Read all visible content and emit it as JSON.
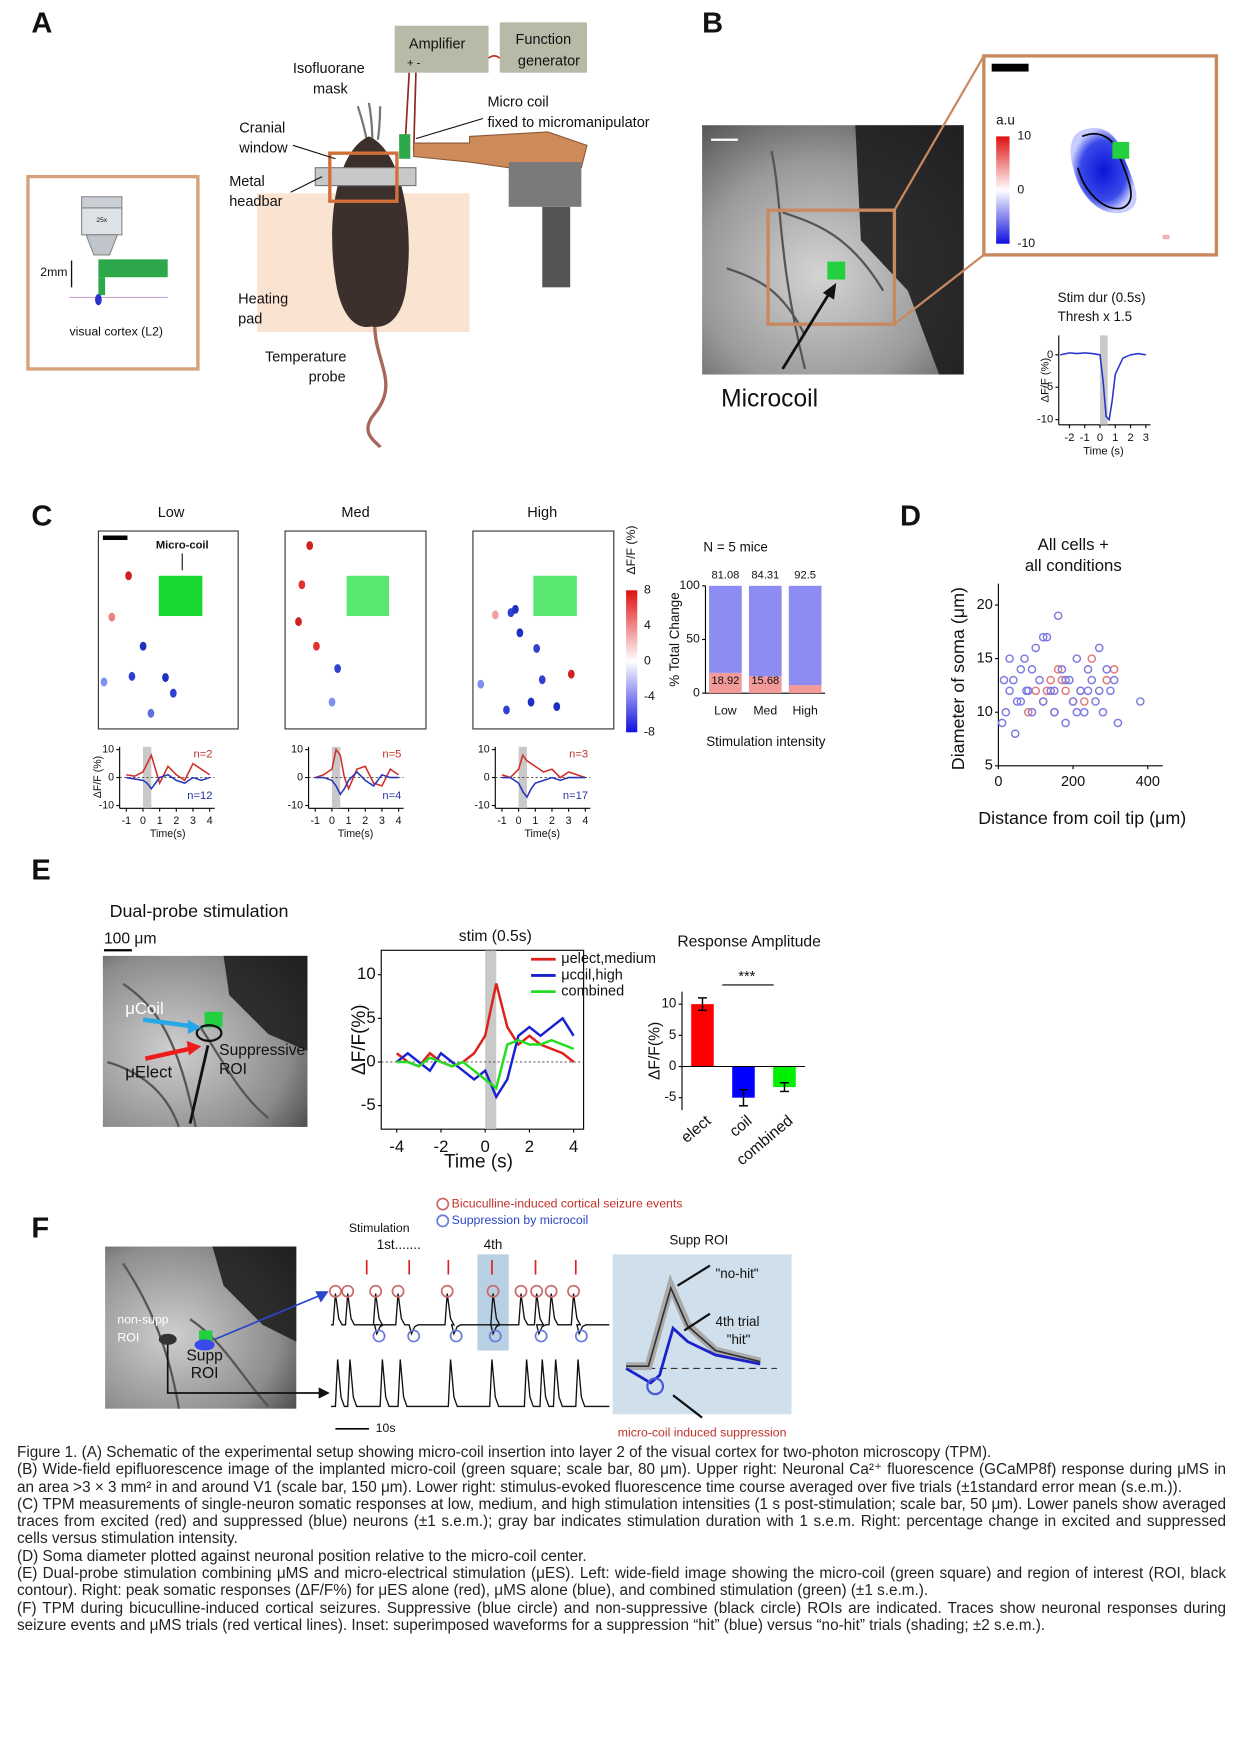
{
  "figure": {
    "A": {
      "label": "A",
      "objective": "25x",
      "depth": "2mm",
      "region": "visual cortex (L2)",
      "amplifier": "Amplifier",
      "polarity": "+ -",
      "function_generator": [
        "Function",
        "generator"
      ],
      "mask": [
        "Isofluorane",
        "mask"
      ],
      "coil": [
        "Micro coil",
        "fixed to micromanipulator"
      ],
      "window": [
        "Cranial",
        "window"
      ],
      "headbar": [
        "Metal",
        "headbar"
      ],
      "pad": [
        "Heating",
        "pad"
      ],
      "probe": [
        "Temperature",
        "probe"
      ]
    },
    "B": {
      "label": "B",
      "image_label": "Microcoil",
      "colorbar_label": "a.u",
      "colorbar_ticks": [
        10,
        0,
        -10
      ]
    },
    "C": {
      "label": "C",
      "coil_label": "Micro-coil",
      "colorbar_label": "ΔF/F (%)",
      "colorbar_ticks": [
        8,
        4,
        0,
        -4,
        -8
      ]
    },
    "D": {
      "label": "D"
    },
    "E": {
      "label": "E",
      "title": "Dual-probe stimulation",
      "scale": "100 μm",
      "coil": "μCoil",
      "elect": "μElect",
      "roi": [
        "Suppressive",
        "ROI"
      ]
    },
    "F": {
      "label": "F",
      "nonsupp": [
        "non-supp",
        "ROI"
      ],
      "supp": [
        "Supp",
        "ROI"
      ],
      "legend": [
        "Bicuculline-induced cortical seizure events",
        "Suppression by microcoil"
      ],
      "stimulation": "Stimulation",
      "first": "1st.......",
      "fourth": "4th",
      "scale": "10s",
      "inset_title": "Supp ROI",
      "no_hit": "\"no-hit\"",
      "hit": [
        "4th trial",
        "\"hit\""
      ],
      "suppression": "micro-coil induced suppression"
    }
  },
  "chart_data": [
    {
      "type": "line",
      "title": [
        "Stim dur (0.5s)",
        "Thresh x 1.5"
      ],
      "xlabel": "Time (s)",
      "ylabel": "ΔF/F (%)",
      "x": [
        -2.6,
        -2,
        -1.5,
        -1,
        -0.5,
        0,
        0.2,
        0.4,
        0.6,
        0.8,
        1,
        1.5,
        2,
        2.5,
        3
      ],
      "series": [
        {
          "color": "#2a35c8",
          "values": [
            0,
            0.3,
            0.2,
            0.3,
            0.2,
            0,
            -4,
            -9.5,
            -10,
            -7,
            -3,
            -0.5,
            0,
            0.2,
            0
          ]
        }
      ],
      "shaded_span": [
        0,
        0.5
      ],
      "xlim": [
        -2.7,
        3.3
      ],
      "ylim": [
        -10.8,
        3
      ],
      "xticks": [
        -2,
        -1,
        0,
        1,
        2,
        3
      ],
      "yticks": [
        -10,
        -5,
        0
      ]
    },
    {
      "type": "line",
      "title": "Low",
      "xlabel": "Time(s)",
      "ylabel": "ΔF/F (%)",
      "x": [
        -1,
        -0.5,
        0,
        0.25,
        0.5,
        0.75,
        1,
        1.5,
        2,
        2.5,
        3,
        3.5,
        4
      ],
      "series": [
        {
          "color": "#d0302a",
          "values": [
            1,
            0.5,
            2,
            5,
            8,
            3,
            -2,
            4,
            1,
            -1,
            5,
            3,
            1
          ]
        },
        {
          "color": "#2a35b8",
          "values": [
            0,
            -0.5,
            -1,
            -2,
            -4,
            -2,
            0,
            1,
            -1,
            -2,
            0,
            -1,
            0
          ]
        }
      ],
      "annotations": [
        {
          "text": "n=2",
          "color": "#c0302a"
        },
        {
          "text": "n=12",
          "color": "#2a35a8"
        }
      ],
      "shaded_span": [
        0,
        0.5
      ],
      "xlim": [
        -1.4,
        4.3
      ],
      "ylim": [
        -11,
        11
      ],
      "xticks": [
        -1,
        0,
        1,
        2,
        3,
        4
      ],
      "yticks": [
        -10,
        0,
        10
      ]
    },
    {
      "type": "line",
      "title": "Med",
      "xlabel": "Time(s)",
      "x": [
        -1,
        -0.5,
        0,
        0.25,
        0.5,
        0.75,
        1,
        1.5,
        2,
        2.5,
        3,
        3.5,
        4
      ],
      "series": [
        {
          "color": "#d0302a",
          "values": [
            0,
            1,
            3,
            10,
            8,
            0,
            -4,
            3,
            4,
            -2,
            -3,
            3,
            1
          ]
        },
        {
          "color": "#2a35b8",
          "values": [
            0,
            0,
            -1,
            -3,
            -6,
            -4,
            -1,
            2,
            -1,
            -3,
            1,
            0,
            0
          ]
        }
      ],
      "annotations": [
        {
          "text": "n=5",
          "color": "#c0302a"
        },
        {
          "text": "n=4",
          "color": "#2a35a8"
        }
      ],
      "shaded_span": [
        0,
        0.5
      ],
      "xlim": [
        -1.4,
        4.3
      ],
      "ylim": [
        -11,
        11
      ],
      "xticks": [
        -1,
        0,
        1,
        2,
        3,
        4
      ],
      "yticks": [
        -10,
        0,
        10
      ]
    },
    {
      "type": "line",
      "title": "High",
      "xlabel": "Time(s)",
      "x": [
        -1,
        -0.5,
        0,
        0.25,
        0.5,
        0.75,
        1,
        1.5,
        2,
        2.5,
        3,
        3.5,
        4
      ],
      "series": [
        {
          "color": "#d0302a",
          "values": [
            1,
            0,
            3,
            8,
            6,
            5,
            4,
            2,
            3,
            0,
            2,
            1,
            0
          ]
        },
        {
          "color": "#2a35b8",
          "values": [
            0,
            0,
            -2,
            -5,
            -7,
            -4,
            -2,
            -1,
            0,
            -1,
            0,
            0,
            0
          ]
        }
      ],
      "annotations": [
        {
          "text": "n=3",
          "color": "#c0302a"
        },
        {
          "text": "n=17",
          "color": "#2a35a8"
        }
      ],
      "shaded_span": [
        0,
        0.5
      ],
      "xlim": [
        -1.4,
        4.3
      ],
      "ylim": [
        -11,
        11
      ],
      "xticks": [
        -1,
        0,
        1,
        2,
        3,
        4
      ],
      "yticks": [
        -10,
        0,
        10
      ]
    },
    {
      "type": "bar",
      "stacked": true,
      "title": "N = 5 mice",
      "xlabel": "Stimulation intensity",
      "ylabel": "% Total Change",
      "categories": [
        "Low",
        "Med",
        "High"
      ],
      "series": [
        {
          "color": "#f29a9a",
          "values": [
            18.92,
            15.68,
            7.5
          ]
        },
        {
          "color": "#8c8cf2",
          "values": [
            81.08,
            84.31,
            92.5
          ]
        }
      ],
      "ylim": [
        0,
        100
      ],
      "yticks": [
        0,
        50,
        100
      ]
    },
    {
      "type": "scatter",
      "title": [
        "All cells +",
        "all conditions"
      ],
      "xlabel": "Distance from coil tip (μm)",
      "ylabel": "Diameter of soma (μm)",
      "series": [
        {
          "color": "#e07878",
          "x": [
            100,
            120,
            140,
            160,
            180,
            200,
            220,
            250,
            290,
            310,
            80,
            150,
            170,
            230,
            130
          ],
          "values": [
            12,
            11,
            13,
            14,
            12,
            11,
            12,
            15,
            13,
            14,
            10,
            10,
            13,
            11,
            12
          ]
        },
        {
          "color": "#7a7ae0",
          "x": [
            10,
            20,
            30,
            40,
            50,
            60,
            70,
            80,
            90,
            100,
            110,
            120,
            130,
            140,
            150,
            160,
            170,
            180,
            190,
            200,
            210,
            220,
            230,
            240,
            250,
            260,
            270,
            280,
            290,
            300,
            310,
            320,
            30,
            60,
            90,
            120,
            150,
            180,
            210,
            240,
            270,
            15,
            45,
            75,
            380
          ],
          "values": [
            9,
            10,
            12,
            13,
            11,
            14,
            15,
            12,
            10,
            16,
            13,
            11,
            17,
            12,
            10,
            19,
            14,
            9,
            13,
            11,
            15,
            12,
            10,
            14,
            13,
            11,
            12,
            10,
            14,
            12,
            13,
            9,
            15,
            11,
            14,
            17,
            12,
            13,
            10,
            12,
            16,
            13,
            8,
            12,
            11
          ]
        }
      ],
      "xlim": [
        0,
        440
      ],
      "ylim": [
        5,
        22
      ],
      "xticks": [
        0,
        200,
        400
      ],
      "yticks": [
        5,
        10,
        15,
        20
      ]
    },
    {
      "type": "line",
      "title": "stim (0.5s)",
      "xlabel": "Time (s)",
      "ylabel": "ΔF/F(%)",
      "x": [
        -4,
        -3.5,
        -3,
        -2.5,
        -2,
        -1.5,
        -1,
        -0.5,
        0,
        0.5,
        1,
        1.5,
        2,
        2.5,
        3,
        3.5,
        4
      ],
      "series": [
        {
          "name": "μelect,medium",
          "color": "#e0201a",
          "values": [
            1,
            0,
            -0.5,
            1,
            0,
            -0.5,
            0,
            1,
            3,
            9,
            4,
            2,
            3,
            2,
            1.5,
            1,
            0
          ]
        },
        {
          "name": "μcoil,high",
          "color": "#1a22d0",
          "values": [
            0,
            1,
            0,
            -1,
            1,
            0,
            -1,
            -2,
            -1,
            -4,
            -2,
            3,
            4,
            3,
            4,
            5,
            3
          ]
        },
        {
          "name": "combined",
          "color": "#22dd22",
          "values": [
            0,
            0,
            -0.5,
            0.5,
            0,
            -0.5,
            0,
            -1,
            -2,
            -3,
            2,
            2.5,
            2,
            2,
            2.5,
            2,
            1.5
          ]
        }
      ],
      "shaded_span": [
        0,
        0.5
      ],
      "xlim": [
        -4.7,
        4.45
      ],
      "ylim": [
        -7.7,
        12.8
      ],
      "xticks": [
        -4,
        -2,
        0,
        2,
        4
      ],
      "yticks": [
        -5,
        0,
        5,
        10
      ]
    },
    {
      "type": "bar",
      "title": "Response Amplitude",
      "ylabel": "ΔF/F(%)",
      "categories": [
        "elect",
        "coil",
        "combined"
      ],
      "values": [
        10,
        -5,
        -3.3
      ],
      "errors": [
        1,
        1.3,
        0.7
      ],
      "colors": [
        "#ff0000",
        "#0000ff",
        "#00ee00"
      ],
      "annotations": [
        "***"
      ],
      "ylim": [
        -7,
        12
      ],
      "yticks": [
        -5,
        0,
        5,
        10
      ]
    }
  ],
  "caption": [
    "Figure 1. (A) Schematic of the experimental setup showing micro-coil insertion into layer 2 of the visual cortex for two-photon microscopy (TPM).",
    "(B) Wide-field epifluorescence image of the implanted micro-coil (green square; scale bar, 80 μm). Upper right: Neuronal Ca²⁺ fluorescence (GCaMP8f) response during μMS in an area >3 × 3 mm² in and around V1 (scale bar, 150 μm). Lower right: stimulus-evoked fluorescence time course averaged over five trials (±1standard error mean (s.e.m.)).",
    "(C) TPM measurements of single-neuron somatic responses at low, medium, and high stimulation intensities (1 s post-stimulation; scale bar, 50 μm). Lower panels show averaged traces from excited (red) and suppressed (blue) neurons (±1 s.e.m.); gray bar indicates stimulation duration with 1 s.e.m. Right: percentage change in excited and suppressed cells versus stimulation intensity.",
    "(D) Soma diameter plotted against neuronal position relative to the micro-coil center.",
    "(E) Dual-probe stimulation combining μMS and micro-electrical stimulation (μES). Left: wide-field image showing the micro-coil (green square) and region of interest (ROI, black contour). Right: peak somatic responses (ΔF/F%) for μES alone (red), μMS alone (blue), and combined stimulation (green) (±1 s.e.m.).",
    "(F) TPM during bicuculline-induced cortical seizures. Suppressive (blue circle) and non-suppressive (black circle) ROIs are indicated. Traces show neuronal responses during seizure events and μMS trials (red vertical lines). Inset: superimposed waveforms for a suppression “hit” (blue) versus “no-hit” trials (shading; ±2 s.e.m.)."
  ]
}
